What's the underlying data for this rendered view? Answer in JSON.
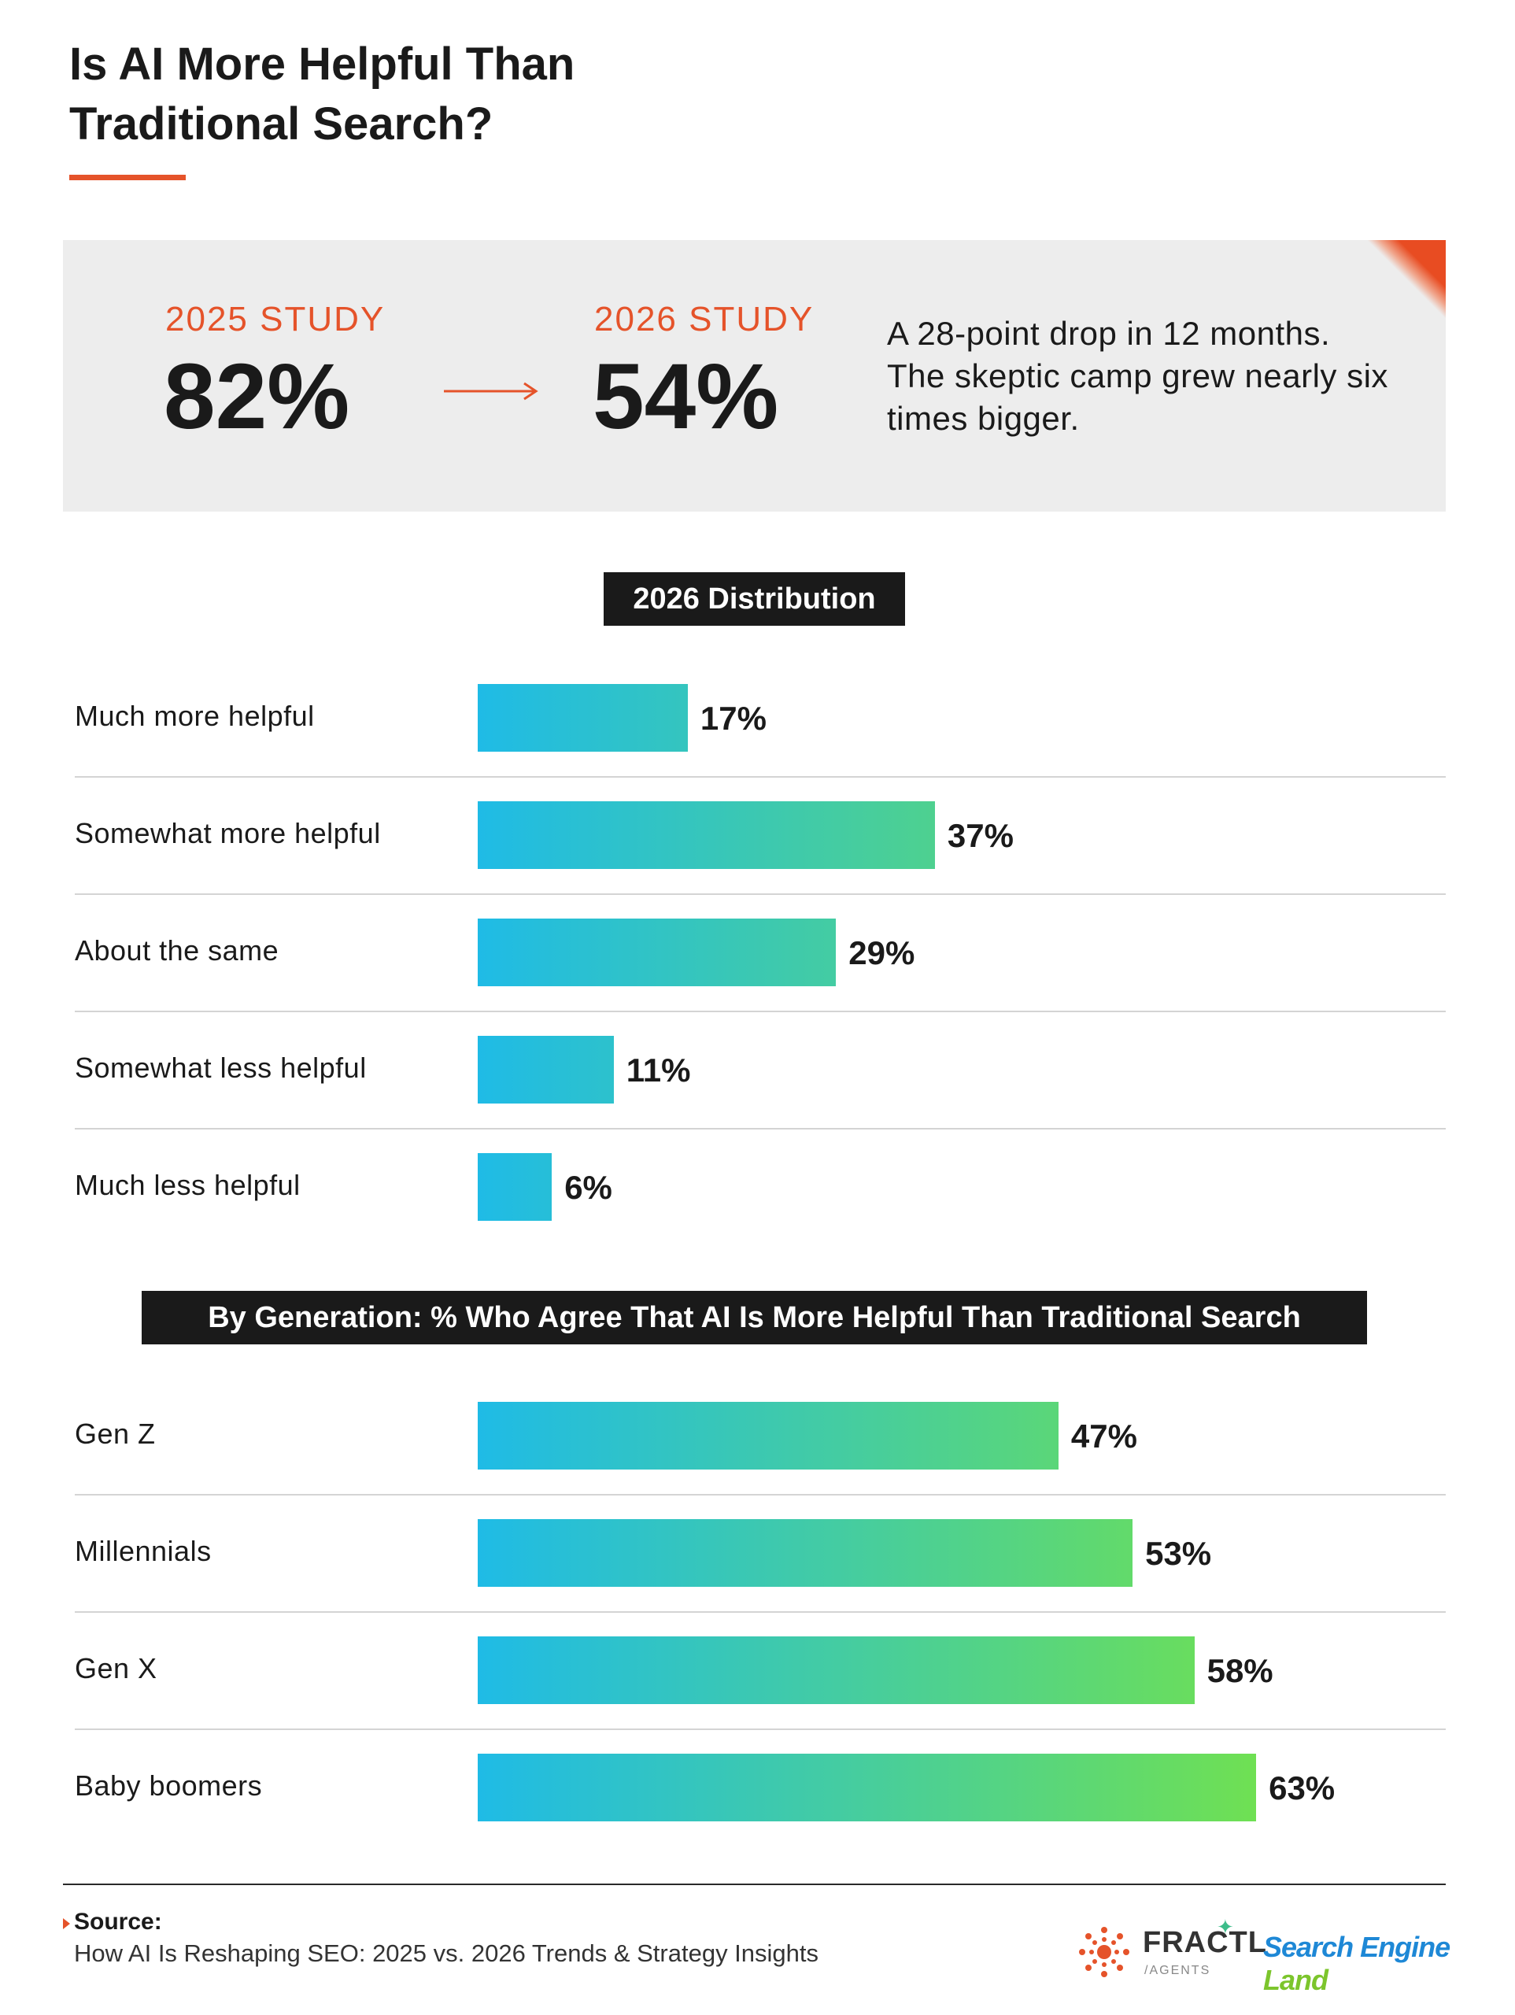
{
  "title": "Is AI More Helpful Than Traditional Search?",
  "summary": {
    "study_2025_label": "2025 STUDY",
    "study_2025_value": "82%",
    "study_2026_label": "2026 STUDY",
    "study_2026_value": "54%",
    "note": "A 28-point drop in 12 months. The skeptic camp grew nearly six times bigger.",
    "accent_color": "#e5532a"
  },
  "chart_data": [
    {
      "type": "bar",
      "orientation": "horizontal",
      "title": "2026 Distribution",
      "categories": [
        "Much more helpful",
        "Somewhat more helpful",
        "About the same",
        "Somewhat less helpful",
        "Much less helpful"
      ],
      "values": [
        17,
        37,
        29,
        11,
        6
      ],
      "value_labels": [
        "17%",
        "37%",
        "29%",
        "11%",
        "6%"
      ],
      "unit": "%",
      "bar_gradient": [
        "#1fbbe6",
        "#6fe053"
      ]
    },
    {
      "type": "bar",
      "orientation": "horizontal",
      "title": "By Generation: % Who Agree That AI Is More Helpful Than Traditional Search",
      "categories": [
        "Gen Z",
        "Millennials",
        "Gen X",
        "Baby boomers"
      ],
      "values": [
        47,
        53,
        58,
        63
      ],
      "value_labels": [
        "47%",
        "53%",
        "58%",
        "63%"
      ],
      "unit": "%",
      "bar_gradient": [
        "#1fbbe6",
        "#6fe053"
      ]
    }
  ],
  "footer": {
    "source_label": "Source:",
    "source_text": "How AI Is Reshaping SEO: 2025 vs. 2026 Trends & Strategy Insights",
    "fractl_name": "FRACTL",
    "fractl_sub": "/AGENTS",
    "sel_part1": "Search Engine",
    "sel_part2": "Land"
  }
}
